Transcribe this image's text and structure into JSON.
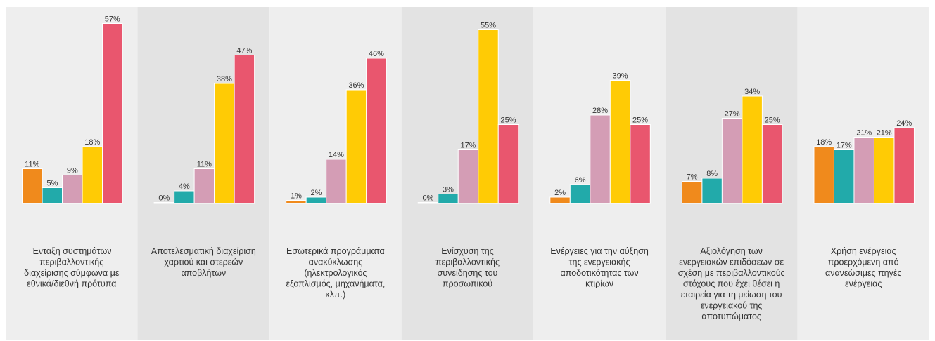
{
  "chart_data": {
    "type": "bar",
    "categories": [
      [
        "Ένταξη συστημάτων",
        "περιβαλλοντικής",
        "διαχείρισης σύμφωνα με",
        "εθνικά/διεθνή πρότυπα"
      ],
      [
        "Αποτελεσματική διαχείριση",
        "χαρτιού και στερεών",
        "αποβλήτων"
      ],
      [
        "Εσωτερικά προγράμματα",
        "ανακύκλωσης",
        "(ηλεκτρολογικός",
        "εξοπλισμός, μηχανήματα,",
        "κλπ.)"
      ],
      [
        "Ενίσχυση της",
        "περιβαλλοντικής",
        "συνείδησης του",
        "προσωπικού"
      ],
      [
        "Ενέργειες για την αύξηση",
        "της ενεργειακής",
        "αποδοτικότητας των",
        "κτιρίων"
      ],
      [
        "Αξιολόγηση των",
        "ενεργειακών επιδόσεων σε",
        "σχέση με περιβαλλοντικούς",
        "στόχους που έχει θέσει η",
        "εταιρεία για τη μείωση του",
        "ενεργειακού της",
        "αποτυπώματος"
      ],
      [
        "Χρήση ενέργειας",
        "προερχόμενη από",
        "ανανεώσιμες πηγές",
        "ενέργειας"
      ]
    ],
    "series": [
      {
        "color": "#f08a1c",
        "values": [
          11,
          0,
          1,
          0,
          2,
          7,
          18
        ],
        "labels": [
          "11%",
          "0%",
          "1%",
          "0%",
          "2%",
          "7%",
          "18%"
        ]
      },
      {
        "color": "#22aaaa",
        "values": [
          5,
          4,
          2,
          3,
          6,
          8,
          17
        ],
        "labels": [
          "5%",
          "4%",
          "2%",
          "3%",
          "6%",
          "8%",
          "17%"
        ]
      },
      {
        "color": "#d49db5",
        "values": [
          9,
          11,
          14,
          17,
          28,
          27,
          21
        ],
        "labels": [
          "9%",
          "11%",
          "14%",
          "17%",
          "28%",
          "27%",
          "21%"
        ]
      },
      {
        "color": "#ffcb05",
        "values": [
          18,
          38,
          36,
          55,
          39,
          34,
          21
        ],
        "labels": [
          "18%",
          "38%",
          "36%",
          "55%",
          "39%",
          "34%",
          "21%"
        ]
      },
      {
        "color": "#e9566e",
        "values": [
          57,
          47,
          46,
          25,
          25,
          25,
          24
        ],
        "labels": [
          "57%",
          "47%",
          "46%",
          "25%",
          "25%",
          "25%",
          "24%"
        ]
      }
    ],
    "ylim": [
      0,
      60
    ],
    "grid": false,
    "legend": "none",
    "panel_colors": [
      "#eeeeee",
      "#e3e3e3"
    ]
  }
}
